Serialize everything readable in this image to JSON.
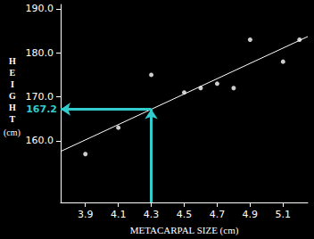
{
  "chart_data": {
    "type": "scatter",
    "xlabel": "METACARPAL SIZE (cm)",
    "ylabel": "HEIGHT",
    "ylabel_unit": "(cm)",
    "x": [
      3.9,
      4.1,
      4.3,
      4.5,
      4.6,
      4.7,
      4.8,
      4.9,
      5.1,
      5.2
    ],
    "values": [
      157,
      163,
      175,
      171,
      172,
      173,
      172,
      183,
      178,
      183
    ],
    "color": "#ffffff",
    "marker": "circle",
    "fit_line": {
      "x": [
        3.75,
        5.25
      ],
      "y": [
        157.6,
        183.7
      ],
      "color": "#ffffff"
    },
    "annotation": {
      "x": 4.3,
      "y": 167.2,
      "label": "167.2",
      "color": "#33cccc"
    },
    "xlim": [
      3.75,
      5.25
    ],
    "xticks": [
      3.9,
      4.1,
      4.3,
      4.5,
      4.7,
      4.9,
      5.1
    ],
    "ylim": [
      146,
      191
    ],
    "yticks": [
      {
        "value": 160,
        "label": "160.0"
      },
      {
        "value": 170,
        "label": "170.0"
      },
      {
        "value": 180,
        "label": "180.0"
      },
      {
        "value": 190,
        "label": "190.0"
      }
    ],
    "grid": false
  }
}
